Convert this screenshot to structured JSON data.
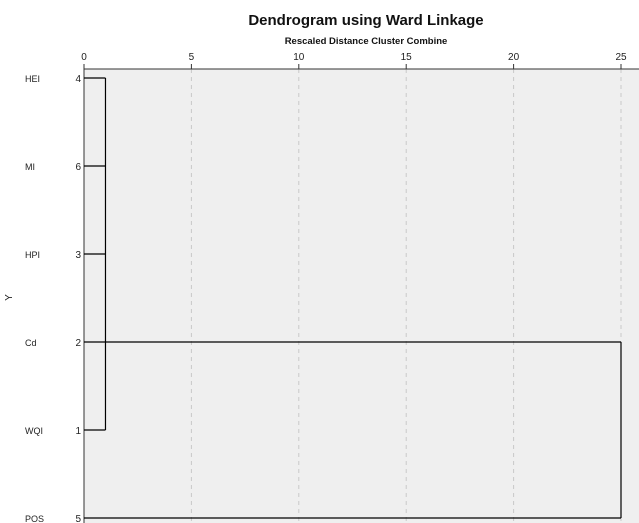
{
  "chart_data": {
    "type": "dendrogram",
    "title": "Dendrogram using Ward Linkage",
    "subtitle": "Rescaled Distance Cluster Combine",
    "xlabel": "Rescaled Distance Cluster Combine",
    "ylabel": "Y",
    "xlim": [
      0,
      25
    ],
    "x_ticks": [
      "0",
      "5",
      "10",
      "15",
      "20",
      "25"
    ],
    "grid": "vertical dashed",
    "leaves": [
      {
        "label": "HEI",
        "case": "4"
      },
      {
        "label": "MI",
        "case": "6"
      },
      {
        "label": "HPI",
        "case": "3"
      },
      {
        "label": "Cd",
        "case": "2"
      },
      {
        "label": "WQI",
        "case": "1"
      },
      {
        "label": "POS",
        "case": "5"
      }
    ],
    "merges": [
      {
        "clusters": [
          "HEI",
          "MI",
          "HPI",
          "Cd",
          "WQI"
        ],
        "distance": 1.0
      },
      {
        "clusters": [
          "HEI",
          "MI",
          "HPI",
          "Cd",
          "WQI",
          "POS"
        ],
        "distance": 25.0
      }
    ],
    "colors": {
      "plot_bg": "#efefef",
      "line": "#000000",
      "grid": "#c8c8c8"
    }
  }
}
